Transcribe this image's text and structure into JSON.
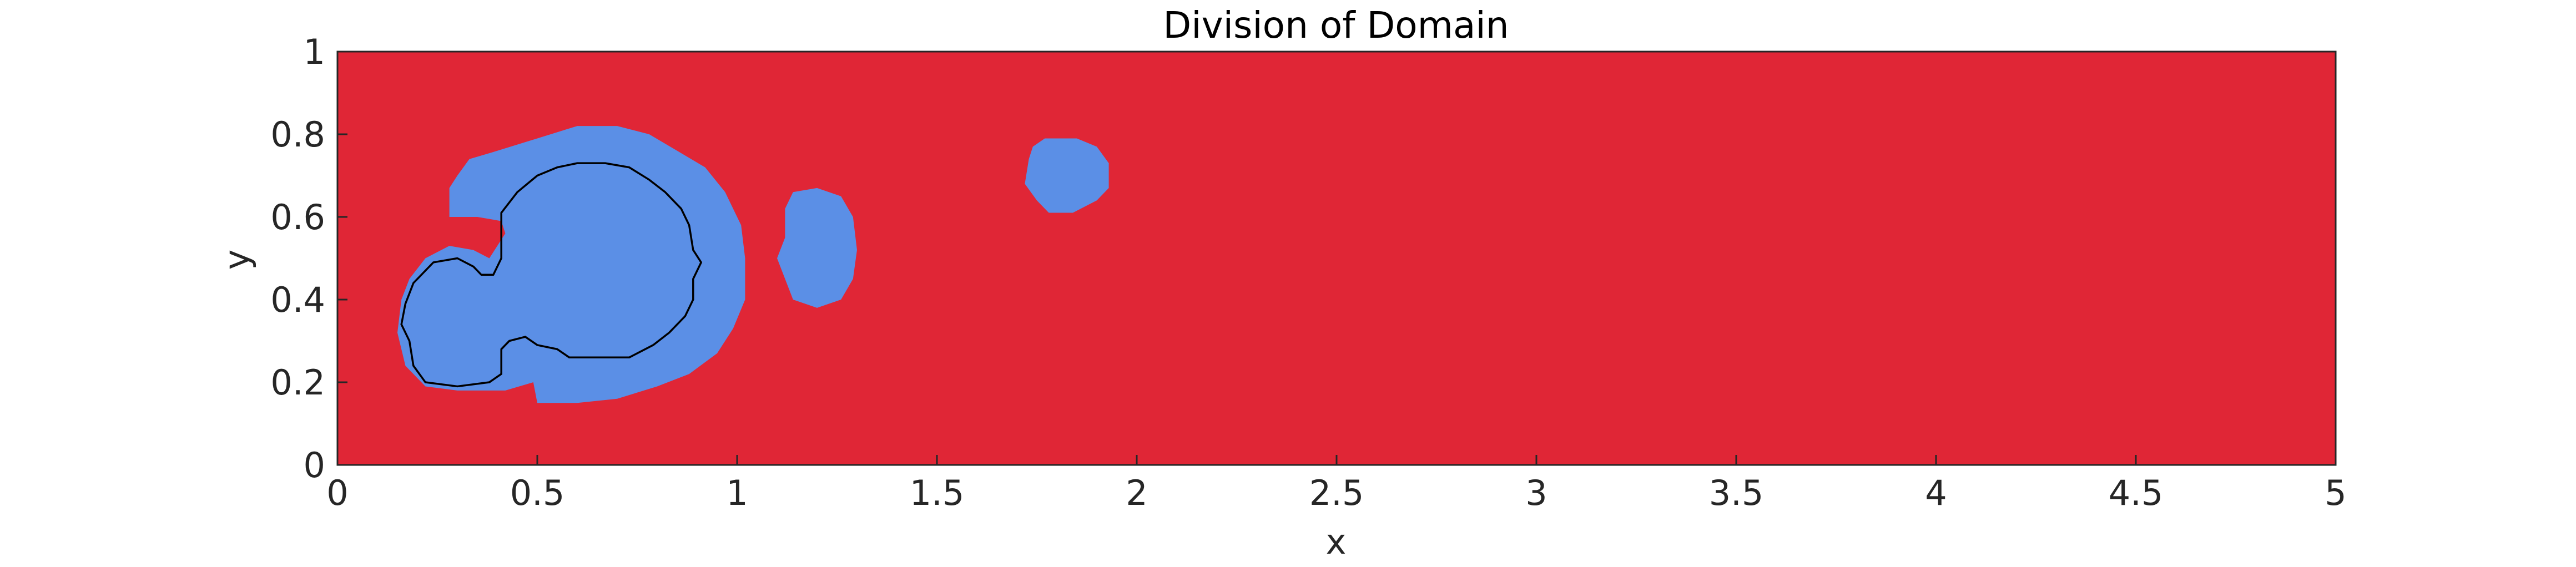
{
  "chart_data": {
    "type": "heatmap",
    "title": "Division of Domain",
    "xlabel": "x",
    "ylabel": "y",
    "xlim": [
      0,
      5
    ],
    "ylim": [
      0,
      1
    ],
    "xticks": [
      0,
      0.5,
      1,
      1.5,
      2,
      2.5,
      3,
      3.5,
      4,
      4.5,
      5
    ],
    "xtick_labels": [
      "0",
      "0.5",
      "1",
      "1.5",
      "2",
      "2.5",
      "3",
      "3.5",
      "4",
      "4.5",
      "5"
    ],
    "yticks": [
      0,
      0.2,
      0.4,
      0.6,
      0.8,
      1
    ],
    "ytick_labels": [
      "0",
      "0.2",
      "0.4",
      "0.6",
      "0.8",
      "1"
    ],
    "grid": false,
    "colors": {
      "background_region": "#e02636",
      "subdomain_region": "#5b8fe6",
      "contour": "#000000",
      "axes_box": "#262626"
    },
    "regions": [
      {
        "label": "large subdomain",
        "boundary": [
          [
            0.28,
            0.6
          ],
          [
            0.28,
            0.67
          ],
          [
            0.3,
            0.7
          ],
          [
            0.33,
            0.74
          ],
          [
            0.4,
            0.76
          ],
          [
            0.5,
            0.79
          ],
          [
            0.6,
            0.82
          ],
          [
            0.7,
            0.82
          ],
          [
            0.78,
            0.8
          ],
          [
            0.85,
            0.76
          ],
          [
            0.92,
            0.72
          ],
          [
            0.97,
            0.66
          ],
          [
            1.01,
            0.58
          ],
          [
            1.02,
            0.5
          ],
          [
            1.02,
            0.4
          ],
          [
            0.99,
            0.33
          ],
          [
            0.95,
            0.27
          ],
          [
            0.88,
            0.22
          ],
          [
            0.8,
            0.19
          ],
          [
            0.7,
            0.16
          ],
          [
            0.6,
            0.15
          ],
          [
            0.5,
            0.15
          ],
          [
            0.49,
            0.2
          ],
          [
            0.42,
            0.18
          ],
          [
            0.3,
            0.18
          ],
          [
            0.22,
            0.19
          ],
          [
            0.17,
            0.24
          ],
          [
            0.15,
            0.32
          ],
          [
            0.16,
            0.4
          ],
          [
            0.18,
            0.45
          ],
          [
            0.22,
            0.5
          ],
          [
            0.28,
            0.53
          ],
          [
            0.34,
            0.52
          ],
          [
            0.38,
            0.5
          ],
          [
            0.4,
            0.53
          ],
          [
            0.42,
            0.56
          ],
          [
            0.41,
            0.59
          ],
          [
            0.35,
            0.6
          ]
        ]
      },
      {
        "label": "middle subdomain",
        "boundary": [
          [
            1.12,
            0.55
          ],
          [
            1.12,
            0.62
          ],
          [
            1.14,
            0.66
          ],
          [
            1.2,
            0.67
          ],
          [
            1.26,
            0.65
          ],
          [
            1.29,
            0.6
          ],
          [
            1.3,
            0.52
          ],
          [
            1.29,
            0.45
          ],
          [
            1.26,
            0.4
          ],
          [
            1.2,
            0.38
          ],
          [
            1.14,
            0.4
          ],
          [
            1.12,
            0.45
          ],
          [
            1.1,
            0.5
          ]
        ]
      },
      {
        "label": "small subdomain",
        "boundary": [
          [
            1.73,
            0.74
          ],
          [
            1.74,
            0.77
          ],
          [
            1.77,
            0.79
          ],
          [
            1.85,
            0.79
          ],
          [
            1.9,
            0.77
          ],
          [
            1.93,
            0.73
          ],
          [
            1.93,
            0.67
          ],
          [
            1.9,
            0.64
          ],
          [
            1.84,
            0.61
          ],
          [
            1.78,
            0.61
          ],
          [
            1.75,
            0.64
          ],
          [
            1.72,
            0.68
          ]
        ]
      }
    ],
    "contours": [
      {
        "label": "inner boundary",
        "points": [
          [
            0.41,
            0.61
          ],
          [
            0.45,
            0.66
          ],
          [
            0.5,
            0.7
          ],
          [
            0.55,
            0.72
          ],
          [
            0.6,
            0.73
          ],
          [
            0.67,
            0.73
          ],
          [
            0.73,
            0.72
          ],
          [
            0.78,
            0.69
          ],
          [
            0.82,
            0.66
          ],
          [
            0.86,
            0.62
          ],
          [
            0.88,
            0.58
          ],
          [
            0.89,
            0.52
          ],
          [
            0.91,
            0.49
          ],
          [
            0.89,
            0.45
          ],
          [
            0.89,
            0.4
          ],
          [
            0.87,
            0.36
          ],
          [
            0.83,
            0.32
          ],
          [
            0.79,
            0.29
          ],
          [
            0.73,
            0.26
          ],
          [
            0.65,
            0.26
          ],
          [
            0.58,
            0.26
          ],
          [
            0.55,
            0.28
          ],
          [
            0.5,
            0.29
          ],
          [
            0.47,
            0.31
          ],
          [
            0.43,
            0.3
          ],
          [
            0.41,
            0.28
          ],
          [
            0.41,
            0.22
          ],
          [
            0.38,
            0.2
          ],
          [
            0.3,
            0.19
          ],
          [
            0.22,
            0.2
          ],
          [
            0.19,
            0.24
          ],
          [
            0.18,
            0.3
          ],
          [
            0.16,
            0.34
          ],
          [
            0.17,
            0.39
          ],
          [
            0.19,
            0.44
          ],
          [
            0.24,
            0.49
          ],
          [
            0.3,
            0.5
          ],
          [
            0.34,
            0.48
          ],
          [
            0.36,
            0.46
          ],
          [
            0.39,
            0.46
          ],
          [
            0.41,
            0.5
          ],
          [
            0.41,
            0.55
          ]
        ]
      }
    ]
  }
}
